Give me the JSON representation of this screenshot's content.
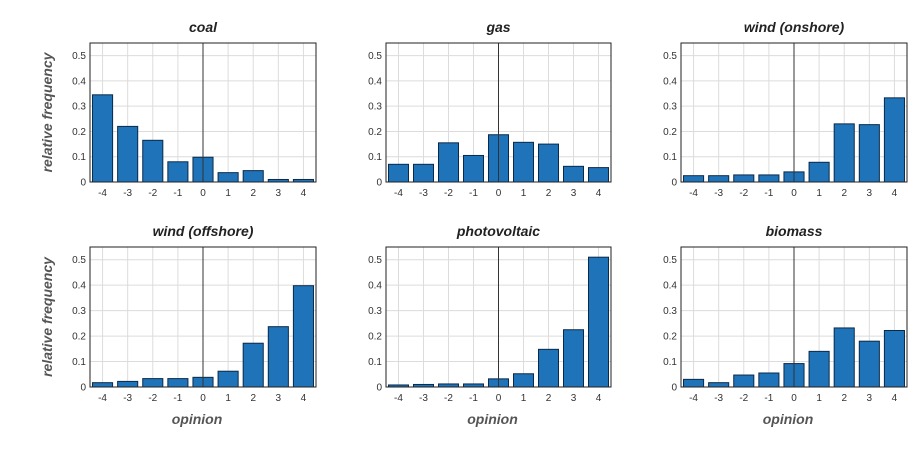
{
  "chart_data": [
    {
      "type": "bar",
      "title": "coal",
      "categories": [
        "-4",
        "-3",
        "-2",
        "-1",
        "0",
        "1",
        "2",
        "3",
        "4"
      ],
      "values": [
        0.345,
        0.22,
        0.165,
        0.08,
        0.098,
        0.037,
        0.045,
        0.01,
        0.01
      ],
      "ylim": [
        0,
        0.55
      ],
      "yticks": [
        "0",
        "0.1",
        "0.2",
        "0.3",
        "0.4",
        "0.5"
      ],
      "ylabel": "relative frequency",
      "xlabel": "",
      "grid": true
    },
    {
      "type": "bar",
      "title": "gas",
      "categories": [
        "-4",
        "-3",
        "-2",
        "-1",
        "0",
        "1",
        "2",
        "3",
        "4"
      ],
      "values": [
        0.07,
        0.07,
        0.155,
        0.105,
        0.187,
        0.157,
        0.15,
        0.062,
        0.057
      ],
      "ylim": [
        0,
        0.55
      ],
      "yticks": [
        "0",
        "0.1",
        "0.2",
        "0.3",
        "0.4",
        "0.5"
      ],
      "ylabel": "",
      "xlabel": "",
      "grid": true
    },
    {
      "type": "bar",
      "title": "wind (onshore)",
      "categories": [
        "-4",
        "-3",
        "-2",
        "-1",
        "0",
        "1",
        "2",
        "3",
        "4"
      ],
      "values": [
        0.025,
        0.025,
        0.028,
        0.028,
        0.04,
        0.078,
        0.23,
        0.227,
        0.333
      ],
      "ylim": [
        0,
        0.55
      ],
      "yticks": [
        "0",
        "0.1",
        "0.2",
        "0.3",
        "0.4",
        "0.5"
      ],
      "ylabel": "",
      "xlabel": "",
      "grid": true
    },
    {
      "type": "bar",
      "title": "wind (offshore)",
      "categories": [
        "-4",
        "-3",
        "-2",
        "-1",
        "0",
        "1",
        "2",
        "3",
        "4"
      ],
      "values": [
        0.017,
        0.022,
        0.033,
        0.033,
        0.038,
        0.062,
        0.172,
        0.237,
        0.398
      ],
      "ylim": [
        0,
        0.55
      ],
      "yticks": [
        "0",
        "0.1",
        "0.2",
        "0.3",
        "0.4",
        "0.5"
      ],
      "ylabel": "relative frequency",
      "xlabel": "opinion",
      "grid": true
    },
    {
      "type": "bar",
      "title": "photovoltaic",
      "categories": [
        "-4",
        "-3",
        "-2",
        "-1",
        "0",
        "1",
        "2",
        "3",
        "4"
      ],
      "values": [
        0.008,
        0.01,
        0.012,
        0.012,
        0.032,
        0.052,
        0.148,
        0.225,
        0.51
      ],
      "ylim": [
        0,
        0.55
      ],
      "yticks": [
        "0",
        "0.1",
        "0.2",
        "0.3",
        "0.4",
        "0.5"
      ],
      "ylabel": "",
      "xlabel": "opinion",
      "grid": true
    },
    {
      "type": "bar",
      "title": "biomass",
      "categories": [
        "-4",
        "-3",
        "-2",
        "-1",
        "0",
        "1",
        "2",
        "3",
        "4"
      ],
      "values": [
        0.03,
        0.017,
        0.047,
        0.055,
        0.092,
        0.14,
        0.232,
        0.18,
        0.222
      ],
      "ylim": [
        0,
        0.55
      ],
      "yticks": [
        "0",
        "0.1",
        "0.2",
        "0.3",
        "0.4",
        "0.5"
      ],
      "ylabel": "",
      "xlabel": "opinion",
      "grid": true
    }
  ]
}
